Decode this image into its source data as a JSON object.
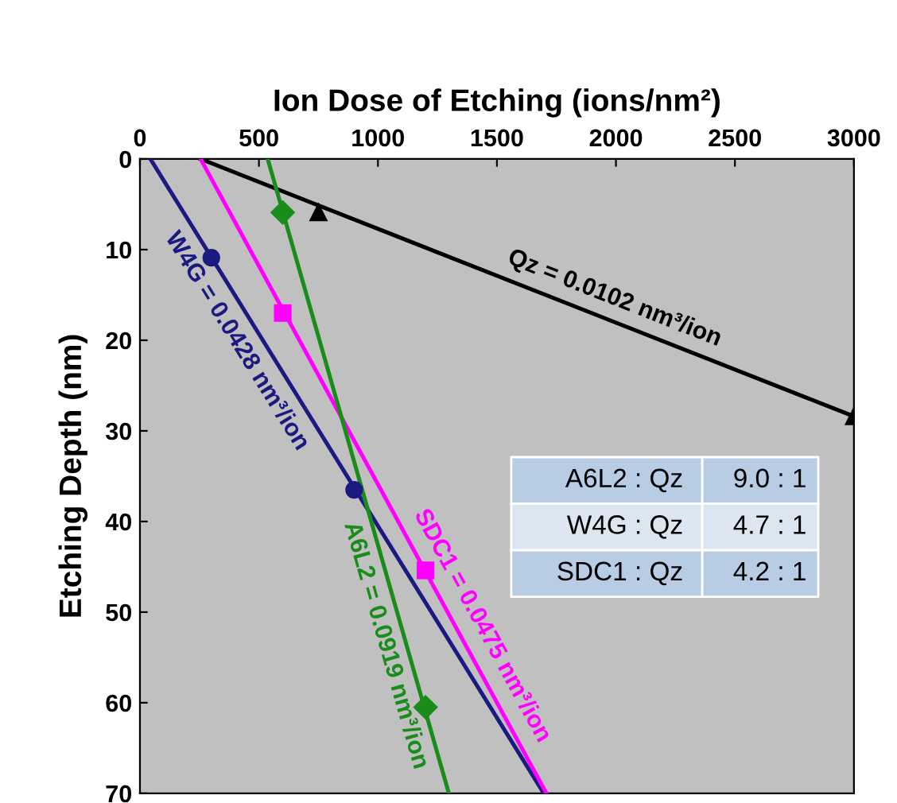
{
  "chart_data": {
    "type": "scatter",
    "xlabel": "Ion Dose of Etching (ions/nm²)",
    "ylabel": "Etching Depth (nm)",
    "xlim": [
      0,
      3000
    ],
    "xticks": [
      0,
      500,
      1000,
      1500,
      2000,
      2500,
      3000
    ],
    "ylim": [
      70,
      0
    ],
    "yticks": [
      0,
      10,
      20,
      30,
      40,
      50,
      60,
      70
    ],
    "grid": false,
    "legend": false,
    "series": [
      {
        "marker": "triangle",
        "color": "#000000",
        "x": [
          750,
          3000
        ],
        "values": [
          5.9,
          28.4
        ]
      },
      {
        "type": "line",
        "color": "#000000",
        "x": [
          255,
          3000
        ],
        "values": [
          0,
          28.4
        ]
      },
      {
        "marker": "circle",
        "color": "#1a1a80",
        "x": [
          300,
          900
        ],
        "values": [
          10.9,
          36.5
        ]
      },
      {
        "type": "line",
        "color": "#1a1a80",
        "x": [
          44,
          1697
        ],
        "values": [
          0,
          70
        ]
      },
      {
        "marker": "square",
        "color": "#ff00ff",
        "x": [
          600,
          1200
        ],
        "values": [
          17.0,
          45.4
        ]
      },
      {
        "type": "line",
        "color": "#ff00ff",
        "x": [
          255,
          1708
        ],
        "values": [
          0,
          70
        ]
      },
      {
        "marker": "diamond",
        "color": "#1a8c1a",
        "x": [
          600,
          1200
        ],
        "values": [
          5.9,
          60.5
        ]
      },
      {
        "type": "line",
        "color": "#1a8c1a",
        "x": [
          537,
          1298
        ],
        "values": [
          0,
          70
        ]
      }
    ],
    "annotations": [
      "Qz = 0.0102 nm³/ion",
      "W4G = 0.0428 nm³/ion",
      "SDC1 = 0.0475 nm³/ion",
      "A6L2 = 0.0919 nm³/ion",
      "A6L2 : Qz",
      "9.0 : 1",
      "W4G : Qz",
      "4.7 : 1",
      "SDC1 : Qz",
      "4.2 : 1"
    ]
  }
}
